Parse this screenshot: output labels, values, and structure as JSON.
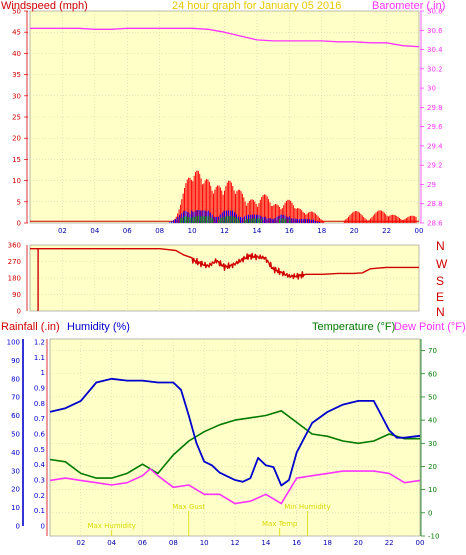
{
  "colors": {
    "plot_bg": "#ffffc8",
    "grid": "#c8c8a8",
    "wind_axis": "#d00000",
    "baro": "#ff33ff",
    "dir": "#d00000",
    "rain": "#d00000",
    "humidity": "#0000cc",
    "temperature": "#007a00",
    "dewpoint": "#ff33ff",
    "title": "#e8c800",
    "gust": "#ff0000",
    "wind_avg": "#0000ff",
    "wind_green": "#00aa00",
    "annot": "#d8d800"
  },
  "chart_data": [
    {
      "type": "bar",
      "title": "24 hour graph for    January 05 2016",
      "ylabel_left": "Windspeed (mph)",
      "ylabel_right": "Barometer (.in)",
      "x_ticks": [
        "02",
        "04",
        "06",
        "08",
        "10",
        "12",
        "14",
        "16",
        "18",
        "20",
        "22",
        "00"
      ],
      "ylim_left": [
        0,
        50
      ],
      "y_ticks_left": [
        "0",
        "5",
        "10",
        "15",
        "20",
        "25",
        "30",
        "35",
        "40",
        "45",
        "50"
      ],
      "ylim_right": [
        28.6,
        30.8
      ],
      "y_ticks_right": [
        "28.6",
        "28.8",
        "29",
        "29.2",
        "29.4",
        "29.6",
        "29.8",
        "30",
        "30.2",
        "30.4",
        "30.6",
        "30.8"
      ],
      "xlim_hours": [
        0,
        24
      ],
      "gust_bursts": [
        {
          "x": 9.8,
          "y": 13
        },
        {
          "x": 10.3,
          "y": 14
        },
        {
          "x": 10.9,
          "y": 11
        },
        {
          "x": 11.6,
          "y": 9
        },
        {
          "x": 12.3,
          "y": 10
        },
        {
          "x": 12.9,
          "y": 8
        },
        {
          "x": 13.7,
          "y": 6
        },
        {
          "x": 14.5,
          "y": 8
        },
        {
          "x": 15.2,
          "y": 6
        },
        {
          "x": 16.0,
          "y": 9
        },
        {
          "x": 16.6,
          "y": 7
        },
        {
          "x": 17.3,
          "y": 5
        },
        {
          "x": 20.1,
          "y": 3
        },
        {
          "x": 21.6,
          "y": 3
        },
        {
          "x": 22.4,
          "y": 2
        },
        {
          "x": 23.6,
          "y": 2
        }
      ],
      "series": [
        {
          "name": "Barometer",
          "x": [
            0,
            1,
            2,
            3,
            4,
            5,
            6,
            7,
            8,
            9,
            10,
            11,
            12,
            13,
            14,
            15,
            16,
            17,
            18,
            19,
            20,
            21,
            22,
            23,
            24
          ],
          "values": [
            30.62,
            30.62,
            30.62,
            30.62,
            30.61,
            30.61,
            30.62,
            30.62,
            30.62,
            30.62,
            30.62,
            30.61,
            30.58,
            30.54,
            30.5,
            30.49,
            30.49,
            30.49,
            30.49,
            30.48,
            30.48,
            30.47,
            30.47,
            30.44,
            30.43
          ]
        },
        {
          "name": "Windspeed average",
          "x": [
            0,
            8.5,
            9,
            9.5,
            10,
            10.5,
            11,
            11.5,
            12,
            12.5,
            13,
            13.5,
            14,
            14.5,
            15,
            15.5,
            16,
            16.5,
            17,
            17.5,
            18,
            24
          ],
          "values": [
            0,
            0,
            1,
            3,
            4,
            3,
            3,
            2,
            3,
            3,
            2,
            2,
            2,
            2,
            1,
            2,
            2,
            1,
            1,
            1,
            0,
            0
          ]
        }
      ]
    },
    {
      "type": "line",
      "ylabel_right": [
        "N",
        "W",
        "S",
        "E",
        "N"
      ],
      "ylim": [
        0,
        360
      ],
      "y_ticks": [
        "0",
        "90",
        "180",
        "270",
        "360"
      ],
      "series": [
        {
          "name": "Wind direction",
          "x": [
            0,
            1,
            2,
            3,
            4,
            5,
            6,
            7,
            8,
            9,
            10,
            10.5,
            11,
            11.5,
            12,
            12.5,
            13,
            13.5,
            14,
            14.5,
            15,
            15.5,
            16,
            16.5,
            17,
            18,
            19,
            20,
            20.5,
            21,
            22,
            23,
            24
          ],
          "values": [
            340,
            340,
            340,
            340,
            340,
            340,
            340,
            340,
            340,
            330,
            280,
            260,
            245,
            275,
            240,
            250,
            275,
            300,
            295,
            290,
            230,
            210,
            190,
            190,
            200,
            200,
            205,
            205,
            208,
            230,
            238,
            238,
            238
          ]
        }
      ],
      "spike": {
        "x": 0.5,
        "y_from": 340,
        "y_to": 0
      }
    },
    {
      "type": "line",
      "ylabel_left_1": "Rainfall (.in)",
      "ylabel_left_2": "Humidity (%)",
      "ylabel_right_1": "Temperature (°F)",
      "ylabel_right_2": "Dew Point (°F)",
      "x_ticks": [
        "02",
        "04",
        "06",
        "08",
        "10",
        "12",
        "14",
        "16",
        "18",
        "20",
        "22",
        "00"
      ],
      "rain_ticks": [
        "0",
        "0.1",
        "0.2",
        "0.3",
        "0.4",
        "0.5",
        "0.6",
        "0.7",
        "0.8",
        "0.9",
        "1",
        "1.1",
        "1.2"
      ],
      "humidity_ticks": [
        "0",
        "10",
        "20",
        "30",
        "40",
        "50",
        "60",
        "70",
        "80",
        "90",
        "100"
      ],
      "ylim_humidity": [
        0,
        100
      ],
      "ylim_temp": [
        -10,
        75
      ],
      "temp_ticks": [
        "-10",
        "0",
        "10",
        "20",
        "30",
        "40",
        "50",
        "60",
        "70"
      ],
      "series": [
        {
          "name": "Humidity (%)",
          "x": [
            0,
            1,
            2,
            3,
            4,
            5,
            6,
            7,
            8,
            8.5,
            9,
            9.5,
            10,
            10.5,
            11,
            11.5,
            12,
            12.5,
            13,
            13.5,
            14,
            14.5,
            15,
            15.5,
            16,
            16.5,
            17,
            18,
            19,
            20,
            21,
            22,
            22.5,
            23,
            24
          ],
          "values": [
            62,
            64,
            68,
            78,
            80,
            79,
            79,
            78,
            78,
            74,
            60,
            45,
            35,
            33,
            29,
            27,
            25,
            24,
            26,
            37,
            33,
            32,
            22,
            25,
            40,
            48,
            56,
            62,
            66,
            68,
            68,
            52,
            48,
            48,
            49
          ]
        },
        {
          "name": "Temperature (°F)",
          "x": [
            0,
            1,
            2,
            3,
            4,
            5,
            6,
            7,
            8,
            9,
            10,
            11,
            12,
            13,
            14,
            15,
            16,
            17,
            18,
            19,
            20,
            21,
            22,
            23,
            24
          ],
          "values": [
            23,
            22,
            17,
            15,
            15,
            17,
            21,
            17,
            25,
            31,
            35,
            38,
            40,
            41,
            42,
            44,
            39,
            34,
            33,
            31,
            30,
            31,
            34,
            32,
            32
          ]
        },
        {
          "name": "Dew Point (°F)",
          "x": [
            0,
            1,
            2,
            3,
            4,
            5,
            6,
            6.5,
            7,
            8,
            9,
            10,
            11,
            12,
            13,
            14,
            15,
            16,
            17,
            18,
            19,
            20,
            21,
            22,
            23,
            24
          ],
          "values": [
            14,
            15,
            14,
            13,
            12,
            13,
            16,
            19,
            16,
            11,
            12,
            8,
            8,
            4,
            5,
            8,
            4,
            15,
            16,
            17,
            18,
            18,
            18,
            17,
            13,
            14
          ]
        }
      ],
      "annotations": [
        {
          "text": "Max Humidity",
          "x": 4.0
        },
        {
          "text": "Max Gust",
          "x": 9.0
        },
        {
          "text": "Max Temp",
          "x": 14.9
        },
        {
          "text": "Min Humidity",
          "x": 16.7
        }
      ]
    }
  ]
}
